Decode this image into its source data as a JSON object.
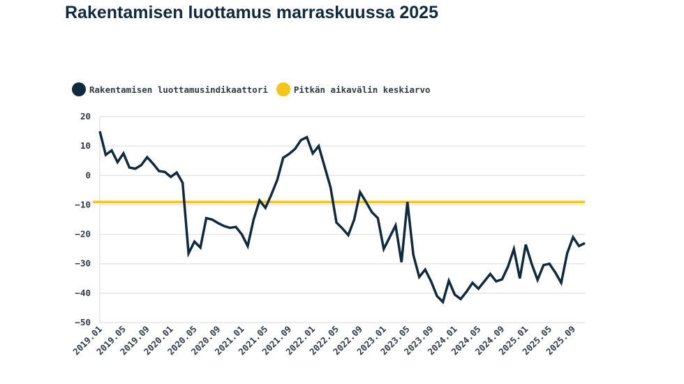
{
  "title": "Rakentamisen luottamus marraskuussa 2025",
  "legend": [
    {
      "label": "Rakentamisen luottamusindikaattori",
      "color": "#0f2a3c"
    },
    {
      "label": "Pitkän aikavälin keskiarvo",
      "color": "#f5c518"
    }
  ],
  "chart_data": {
    "type": "line",
    "title": "Rakentamisen luottamus marraskuussa 2025",
    "xlabel": "",
    "ylabel": "",
    "ylim": [
      -50,
      20
    ],
    "yticks": [
      "20",
      "10",
      "0",
      "−10",
      "−20",
      "−30",
      "−40",
      "−50"
    ],
    "ytick_values": [
      20,
      10,
      0,
      -10,
      -20,
      -30,
      -40,
      -50
    ],
    "x_start": "2019.01",
    "x_end": "2025.11",
    "xtick_labels": [
      "2019.01",
      "2019.05",
      "2019.09",
      "2020.01",
      "2020.05",
      "2020.09",
      "2021.01",
      "2021.05",
      "2021.09",
      "2022.01",
      "2022.05",
      "2022.09",
      "2023.01",
      "2023.05",
      "2023.09",
      "2024.01",
      "2024.05",
      "2024.09",
      "2025.01",
      "2025.05",
      "2025.09"
    ],
    "series": [
      {
        "name": "Rakentamisen luottamusindikaattori",
        "color": "#0f2a3c",
        "values": [
          15,
          7,
          8.5,
          4.5,
          7.5,
          2.7,
          2.3,
          3.5,
          6.2,
          4,
          1.5,
          1.2,
          -0.5,
          1,
          -2.5,
          -26.5,
          -22.5,
          -24.5,
          -14.5,
          -15,
          -16.2,
          -17.2,
          -17.8,
          -17.5,
          -20,
          -24,
          -15,
          -8.5,
          -11,
          -6.5,
          -1.5,
          6,
          7.3,
          9,
          12,
          13,
          7.5,
          10,
          3,
          -4,
          -16,
          -18,
          -20.3,
          -15,
          -5.7,
          -9,
          -12.5,
          -14.5,
          -25,
          -21,
          -17,
          -29.5,
          -9,
          -27,
          -34.5,
          -32,
          -36,
          -41,
          -43,
          -35.8,
          -40.5,
          -42,
          -39.5,
          -36.5,
          -38.5,
          -36,
          -33.5,
          -36,
          -35.3,
          -31,
          -25,
          -35,
          -23.5,
          -30,
          -35.5,
          -30.5,
          -30,
          -33,
          -36.5,
          -26.5,
          -21,
          -24,
          -23
        ]
      },
      {
        "name": "Pitkän aikavälin keskiarvo",
        "color": "#f5c518",
        "constant": -9
      }
    ]
  }
}
